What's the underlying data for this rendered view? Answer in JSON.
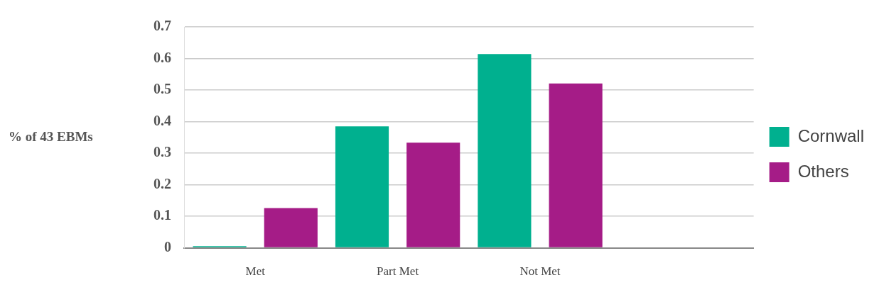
{
  "chart_data": {
    "type": "bar",
    "ylabel": "% of 43 EBMs",
    "categories": [
      "Met",
      "Part Met",
      "Not Met",
      null
    ],
    "series": [
      {
        "name": "Cornwall",
        "color": "#00b08f",
        "values": [
          0.005,
          0.385,
          0.614,
          null
        ]
      },
      {
        "name": "Others",
        "color": "#a51c87",
        "values": [
          0.126,
          0.333,
          0.521,
          null
        ]
      }
    ],
    "ylim": [
      0,
      0.7
    ],
    "yticks": [
      0,
      0.1,
      0.2,
      0.3,
      0.4,
      0.5,
      0.6,
      0.7
    ],
    "grid": "y",
    "legend": "right"
  }
}
